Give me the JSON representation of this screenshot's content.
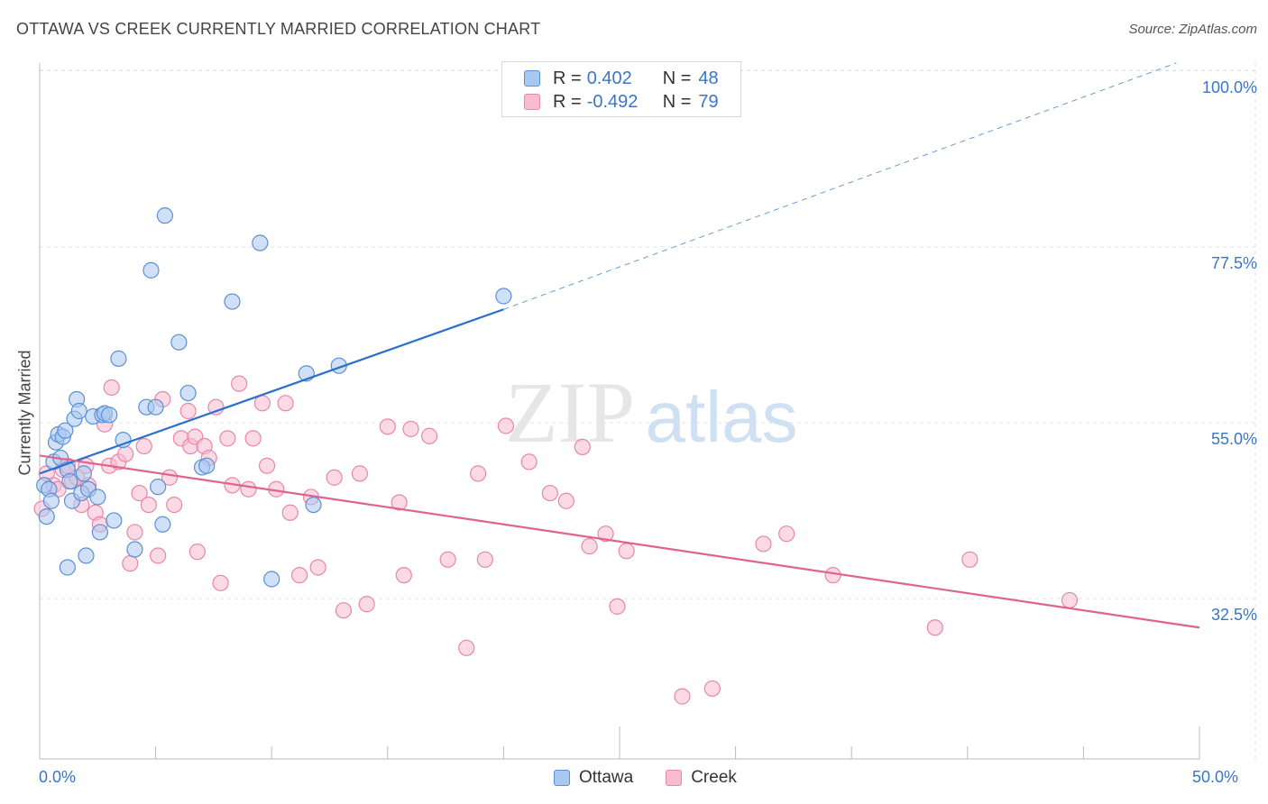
{
  "title": "OTTAWA VS CREEK CURRENTLY MARRIED CORRELATION CHART",
  "source": "Source: ZipAtlas.com",
  "watermark": {
    "zip": "ZIP",
    "atlas": "atlas"
  },
  "legend_top": {
    "rows": [
      {
        "r_label": "R =",
        "r_value": "0.402",
        "n_label": "N =",
        "n_value": "48"
      },
      {
        "r_label": "R =",
        "r_value": "-0.492",
        "n_label": "N =",
        "n_value": "79"
      }
    ]
  },
  "legend_bottom": [
    "Ottawa",
    "Creek"
  ],
  "colors": {
    "ottawa_fill": "#a9c8f0",
    "ottawa_stroke": "#5b8fd6",
    "ottawa_line": "#2a6fcf",
    "creek_fill": "#f7bcd0",
    "creek_stroke": "#e887a8",
    "creek_line": "#e0628f",
    "tick_text": "#3a76c8",
    "grid": "#e3e3e3"
  },
  "chart_data": {
    "type": "scatter",
    "title": "OTTAWA VS CREEK CURRENTLY MARRIED CORRELATION CHART",
    "xlabel": "",
    "ylabel": "Currently Married",
    "xlim": [
      0,
      50
    ],
    "ylim": [
      12,
      101
    ],
    "x_tick_labels": [
      "0.0%",
      "50.0%"
    ],
    "y_ticks": [
      32.5,
      55.0,
      77.5,
      100.0
    ],
    "y_tick_labels": [
      "32.5%",
      "55.0%",
      "77.5%",
      "100.0%"
    ],
    "grid": true,
    "legend_position": "bottom",
    "series": [
      {
        "name": "Ottawa",
        "r": 0.402,
        "n": 48,
        "trend": {
          "x": [
            0,
            20
          ],
          "y": [
            48.5,
            69.5
          ],
          "dashed_to": [
            49,
            101
          ]
        },
        "points": [
          [
            0.2,
            47
          ],
          [
            0.3,
            43
          ],
          [
            0.4,
            46.5
          ],
          [
            0.5,
            45
          ],
          [
            0.6,
            50
          ],
          [
            0.7,
            52.5
          ],
          [
            0.8,
            53.5
          ],
          [
            0.9,
            50.5
          ],
          [
            1.0,
            53.2
          ],
          [
            1.1,
            54
          ],
          [
            1.2,
            49
          ],
          [
            1.3,
            47.5
          ],
          [
            1.4,
            45
          ],
          [
            1.5,
            55.5
          ],
          [
            1.6,
            58
          ],
          [
            1.7,
            56.5
          ],
          [
            1.8,
            46
          ],
          [
            1.9,
            48.5
          ],
          [
            2.0,
            38
          ],
          [
            2.1,
            46.5
          ],
          [
            2.3,
            55.8
          ],
          [
            2.5,
            45.5
          ],
          [
            2.6,
            41
          ],
          [
            2.7,
            56
          ],
          [
            2.8,
            56.2
          ],
          [
            3.0,
            56
          ],
          [
            3.2,
            42.5
          ],
          [
            3.4,
            63.2
          ],
          [
            3.6,
            52.8
          ],
          [
            4.1,
            38.8
          ],
          [
            4.6,
            57
          ],
          [
            4.8,
            74.5
          ],
          [
            5.0,
            57
          ],
          [
            5.1,
            46.8
          ],
          [
            5.3,
            42
          ],
          [
            5.4,
            81.5
          ],
          [
            6.0,
            65.3
          ],
          [
            6.4,
            58.8
          ],
          [
            7.0,
            49.3
          ],
          [
            7.2,
            49.5
          ],
          [
            8.3,
            70.5
          ],
          [
            9.5,
            78
          ],
          [
            10.0,
            35
          ],
          [
            11.5,
            61.3
          ],
          [
            11.8,
            44.5
          ],
          [
            12.9,
            62.3
          ],
          [
            20.0,
            71.2
          ],
          [
            1.2,
            36.5
          ]
        ]
      },
      {
        "name": "Creek",
        "r": -0.492,
        "n": 79,
        "trend": {
          "x": [
            0,
            50
          ],
          "y": [
            50.8,
            28.8
          ]
        },
        "points": [
          [
            0.1,
            44
          ],
          [
            0.3,
            48.5
          ],
          [
            0.6,
            47
          ],
          [
            0.8,
            46.5
          ],
          [
            1.0,
            49
          ],
          [
            1.2,
            49.5
          ],
          [
            1.4,
            47.5
          ],
          [
            1.6,
            48
          ],
          [
            1.8,
            44.5
          ],
          [
            2.0,
            49.5
          ],
          [
            2.1,
            47
          ],
          [
            2.4,
            43.5
          ],
          [
            2.6,
            42
          ],
          [
            2.8,
            54.8
          ],
          [
            3.0,
            49.5
          ],
          [
            3.1,
            59.5
          ],
          [
            3.4,
            50
          ],
          [
            3.7,
            51
          ],
          [
            3.9,
            37
          ],
          [
            4.1,
            41
          ],
          [
            4.3,
            46
          ],
          [
            4.5,
            52
          ],
          [
            4.7,
            44.5
          ],
          [
            5.1,
            38
          ],
          [
            5.3,
            58
          ],
          [
            5.6,
            48
          ],
          [
            5.8,
            44.5
          ],
          [
            6.1,
            53
          ],
          [
            6.4,
            56.5
          ],
          [
            6.5,
            52
          ],
          [
            6.7,
            53.2
          ],
          [
            6.8,
            38.5
          ],
          [
            7.1,
            52
          ],
          [
            7.3,
            50.5
          ],
          [
            7.6,
            57
          ],
          [
            7.8,
            34.5
          ],
          [
            8.1,
            53
          ],
          [
            8.3,
            47
          ],
          [
            8.6,
            60
          ],
          [
            9.0,
            46.5
          ],
          [
            9.2,
            53
          ],
          [
            9.6,
            57.5
          ],
          [
            9.8,
            49.5
          ],
          [
            10.2,
            46.5
          ],
          [
            10.6,
            57.5
          ],
          [
            10.8,
            43.5
          ],
          [
            11.2,
            35.5
          ],
          [
            11.7,
            45.5
          ],
          [
            12.0,
            36.5
          ],
          [
            12.7,
            48
          ],
          [
            13.1,
            31
          ],
          [
            13.8,
            48.5
          ],
          [
            14.1,
            31.8
          ],
          [
            15.0,
            54.5
          ],
          [
            15.5,
            44.8
          ],
          [
            15.7,
            35.5
          ],
          [
            16.0,
            54.2
          ],
          [
            16.8,
            53.3
          ],
          [
            17.6,
            37.5
          ],
          [
            18.4,
            26.2
          ],
          [
            18.9,
            48.5
          ],
          [
            19.2,
            37.5
          ],
          [
            20.1,
            54.6
          ],
          [
            21.1,
            50
          ],
          [
            22.0,
            46
          ],
          [
            22.7,
            45
          ],
          [
            23.4,
            51.9
          ],
          [
            23.7,
            39.2
          ],
          [
            24.4,
            40.8
          ],
          [
            24.9,
            31.5
          ],
          [
            25.3,
            38.6
          ],
          [
            27.7,
            20
          ],
          [
            29.0,
            21
          ],
          [
            31.2,
            39.5
          ],
          [
            32.2,
            40.8
          ],
          [
            34.2,
            35.5
          ],
          [
            38.6,
            28.8
          ],
          [
            40.1,
            37.5
          ],
          [
            44.4,
            32.3
          ]
        ]
      }
    ]
  }
}
